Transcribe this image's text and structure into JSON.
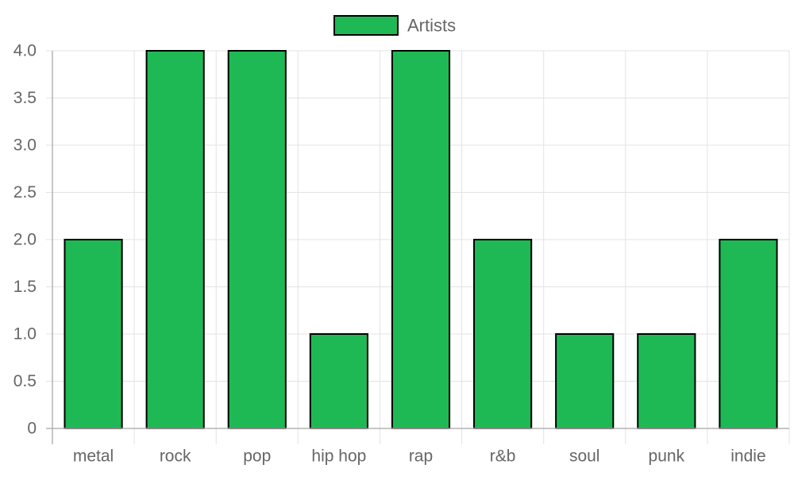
{
  "chart_data": {
    "type": "bar",
    "categories": [
      "metal",
      "rock",
      "pop",
      "hip hop",
      "rap",
      "r&b",
      "soul",
      "punk",
      "indie"
    ],
    "series": [
      {
        "name": "Artists",
        "values": [
          2,
          4,
          4,
          1,
          4,
          2,
          1,
          1,
          2
        ],
        "color": "#1eb954",
        "border_color": "#000000"
      }
    ],
    "y_ticks": [
      "0",
      "0.5",
      "1.0",
      "1.5",
      "2.0",
      "2.5",
      "3.0",
      "3.5",
      "4.0"
    ],
    "ylim": [
      0,
      4
    ],
    "grid": true,
    "legend": "top"
  }
}
